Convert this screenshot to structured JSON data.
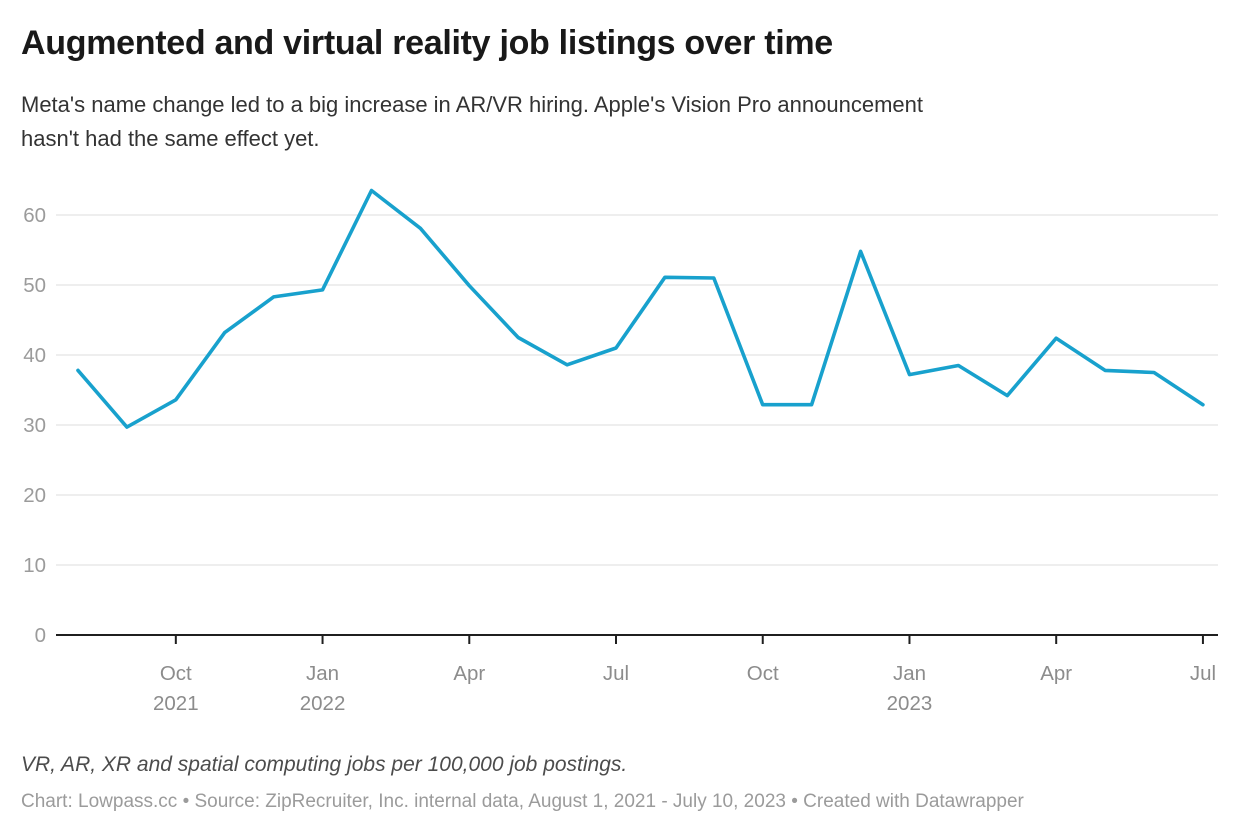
{
  "header": {
    "title": "Augmented and virtual reality job listings over time",
    "subtitle": "Meta's name change led to a big increase in AR/VR hiring. Apple's Vision Pro announcement\nhasn't had the same effect yet."
  },
  "footer": {
    "note": "VR, AR, XR and spatial computing jobs per 100,000 job postings.",
    "credit": "Chart: Lowpass.cc • Source: ZipRecruiter, Inc. internal data, August 1, 2021 - July 10, 2023 • Created with Datawrapper"
  },
  "chart_data": {
    "type": "line",
    "title": "Augmented and virtual reality job listings over time",
    "xlabel": "",
    "ylabel": "",
    "x": [
      "Aug 2021",
      "Sep 2021",
      "Oct 2021",
      "Nov 2021",
      "Dec 2021",
      "Jan 2022",
      "Feb 2022",
      "Mar 2022",
      "Apr 2022",
      "May 2022",
      "Jun 2022",
      "Jul 2022",
      "Aug 2022",
      "Sep 2022",
      "Oct 2022",
      "Nov 2022",
      "Dec 2022",
      "Jan 2023",
      "Feb 2023",
      "Mar 2023",
      "Apr 2023",
      "May 2023",
      "Jun 2023",
      "Jul 2023"
    ],
    "series": [
      {
        "name": "VR, AR, XR and spatial computing jobs per 100,000 job postings",
        "values": [
          37.8,
          29.7,
          33.6,
          43.2,
          48.3,
          49.3,
          63.5,
          58.1,
          49.9,
          42.5,
          38.6,
          41.0,
          51.1,
          51.0,
          32.9,
          32.9,
          54.8,
          37.2,
          38.5,
          34.2,
          42.4,
          37.8,
          37.5,
          32.9
        ]
      }
    ],
    "ylim": [
      0,
      65
    ],
    "yticks": [
      0,
      10,
      20,
      30,
      40,
      50,
      60
    ],
    "xticks": [
      {
        "month": "Oct",
        "year": "2021",
        "index": 2
      },
      {
        "month": "Jan",
        "year": "2022",
        "index": 5
      },
      {
        "month": "Apr",
        "year": "",
        "index": 8
      },
      {
        "month": "Jul",
        "year": "",
        "index": 11
      },
      {
        "month": "Oct",
        "year": "",
        "index": 14
      },
      {
        "month": "Jan",
        "year": "2023",
        "index": 17
      },
      {
        "month": "Apr",
        "year": "",
        "index": 20
      },
      {
        "month": "Jul",
        "year": "",
        "index": 23
      }
    ],
    "grid": "horizontal",
    "legend": "none",
    "colors": {
      "line": "#18a1cd",
      "grid": "#e8e8e8",
      "axis": "#1f1f1f",
      "y_tick_label": "#9b9b9b",
      "x_tick_label": "#8c8c8c"
    }
  }
}
